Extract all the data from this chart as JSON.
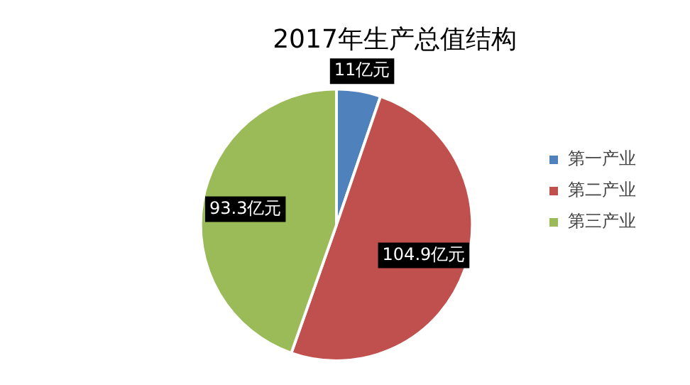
{
  "chart_data": {
    "type": "pie",
    "title": "2017年生产总值结构",
    "categories": [
      "第一产业",
      "第二产业",
      "第三产业"
    ],
    "values": [
      11,
      104.9,
      93.3
    ],
    "colors": [
      "#4f81bd",
      "#c0504d",
      "#9bbb59"
    ],
    "value_labels": [
      "11亿元",
      "104.9亿元",
      "93.3亿元"
    ],
    "legend": "right"
  }
}
